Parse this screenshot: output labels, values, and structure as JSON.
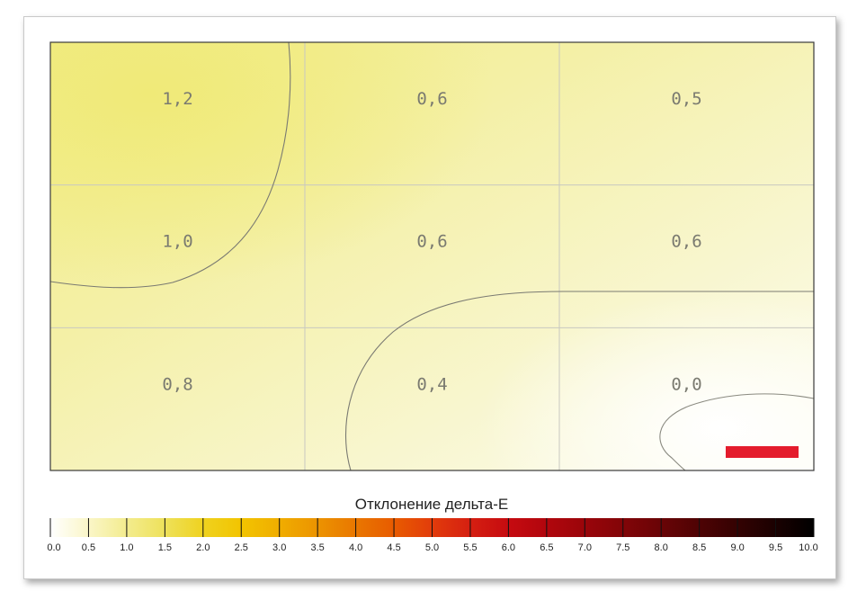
{
  "chart_data": {
    "type": "heatmap",
    "rows": 3,
    "cols": 3,
    "values": [
      [
        "1,2",
        "0,6",
        "0,5"
      ],
      [
        "1,0",
        "0,6",
        "0,6"
      ],
      [
        "0,8",
        "0,4",
        "0,0"
      ]
    ],
    "grid": true,
    "legend": {
      "title": "Отклонение дельта-E",
      "ticks": [
        "0.0",
        "0.5",
        "1.0",
        "1.5",
        "2.0",
        "2.5",
        "3.0",
        "3.5",
        "4.0",
        "4.5",
        "5.0",
        "5.5",
        "6.0",
        "6.5",
        "7.0",
        "7.5",
        "8.0",
        "8.5",
        "9.0",
        "9.5",
        "10.0"
      ],
      "colors": [
        "#ffffff",
        "#faf6c8",
        "#f3ec8e",
        "#eee15a",
        "#efd21f",
        "#f2c400",
        "#f0ad00",
        "#ec9300",
        "#e97700",
        "#e85b00",
        "#e23c0b",
        "#d51f11",
        "#c60b10",
        "#b1060d",
        "#9a050a",
        "#820508",
        "#690406",
        "#4e0304",
        "#340202",
        "#1a0101",
        "#000000"
      ],
      "position": "bottom"
    },
    "marker_color": "#e41c2d"
  }
}
